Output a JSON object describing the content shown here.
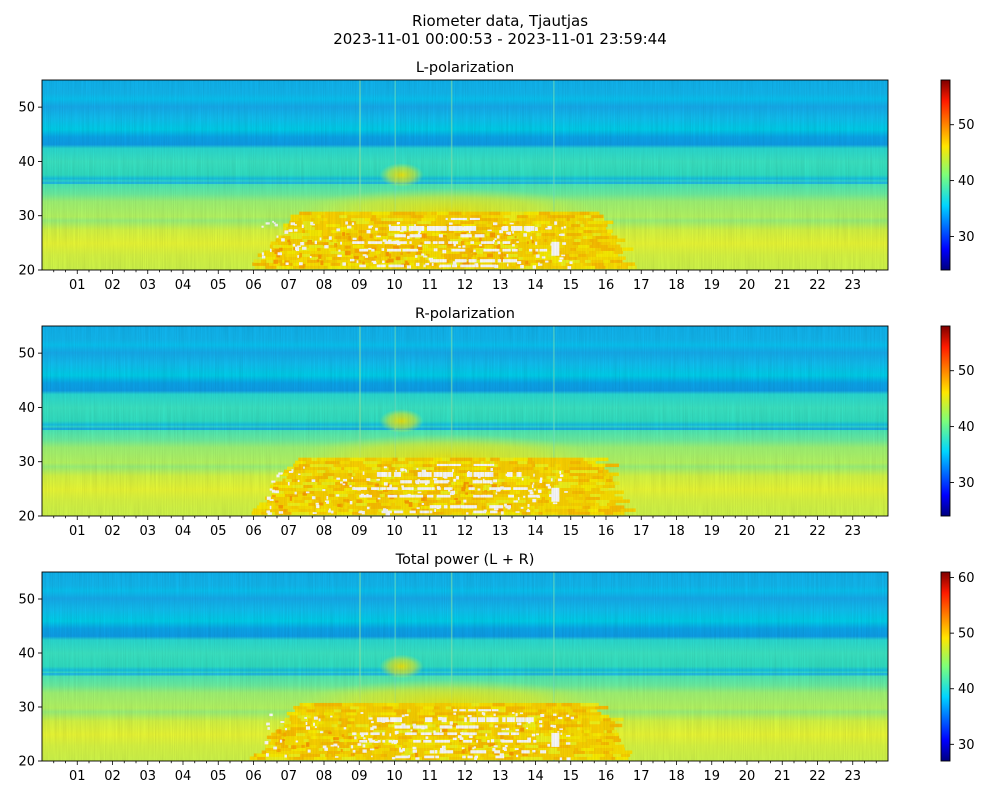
{
  "figure": {
    "title_line1": "Riometer data, Tjautjas",
    "title_line2": "2023-11-01 00:00:53 - 2023-11-01 23:59:44"
  },
  "colormap": "jet",
  "chart_data": [
    {
      "type": "heatmap",
      "title": "L-polarization",
      "x_ticks": [
        "01",
        "02",
        "03",
        "04",
        "05",
        "06",
        "07",
        "08",
        "09",
        "10",
        "11",
        "12",
        "13",
        "14",
        "15",
        "16",
        "17",
        "18",
        "19",
        "20",
        "21",
        "22",
        "23"
      ],
      "xlim": [
        0,
        24
      ],
      "y_ticks": [
        20,
        30,
        40,
        50
      ],
      "ylim": [
        20,
        55
      ],
      "colorbar": {
        "ticks": [
          30,
          40,
          50
        ],
        "range": [
          24,
          58
        ]
      },
      "notes": "Horizontal banding: low values (~34) near y 42-55, moderate (~40) 30-42, higher (~45) 20-30; enhancement/saturated region roughly 06-16 h, y 20-30."
    },
    {
      "type": "heatmap",
      "title": "R-polarization",
      "x_ticks": [
        "01",
        "02",
        "03",
        "04",
        "05",
        "06",
        "07",
        "08",
        "09",
        "10",
        "11",
        "12",
        "13",
        "14",
        "15",
        "16",
        "17",
        "18",
        "19",
        "20",
        "21",
        "22",
        "23"
      ],
      "xlim": [
        0,
        24
      ],
      "y_ticks": [
        20,
        30,
        40,
        50
      ],
      "ylim": [
        20,
        55
      ],
      "colorbar": {
        "ticks": [
          30,
          40,
          50
        ],
        "range": [
          24,
          58
        ]
      }
    },
    {
      "type": "heatmap",
      "title": "Total power (L + R)",
      "x_ticks": [
        "01",
        "02",
        "03",
        "04",
        "05",
        "06",
        "07",
        "08",
        "09",
        "10",
        "11",
        "12",
        "13",
        "14",
        "15",
        "16",
        "17",
        "18",
        "19",
        "20",
        "21",
        "22",
        "23"
      ],
      "xlim": [
        0,
        24
      ],
      "y_ticks": [
        20,
        30,
        40,
        50
      ],
      "ylim": [
        20,
        55
      ],
      "colorbar": {
        "ticks": [
          30,
          40,
          50,
          60
        ],
        "range": [
          27,
          61
        ]
      }
    }
  ]
}
